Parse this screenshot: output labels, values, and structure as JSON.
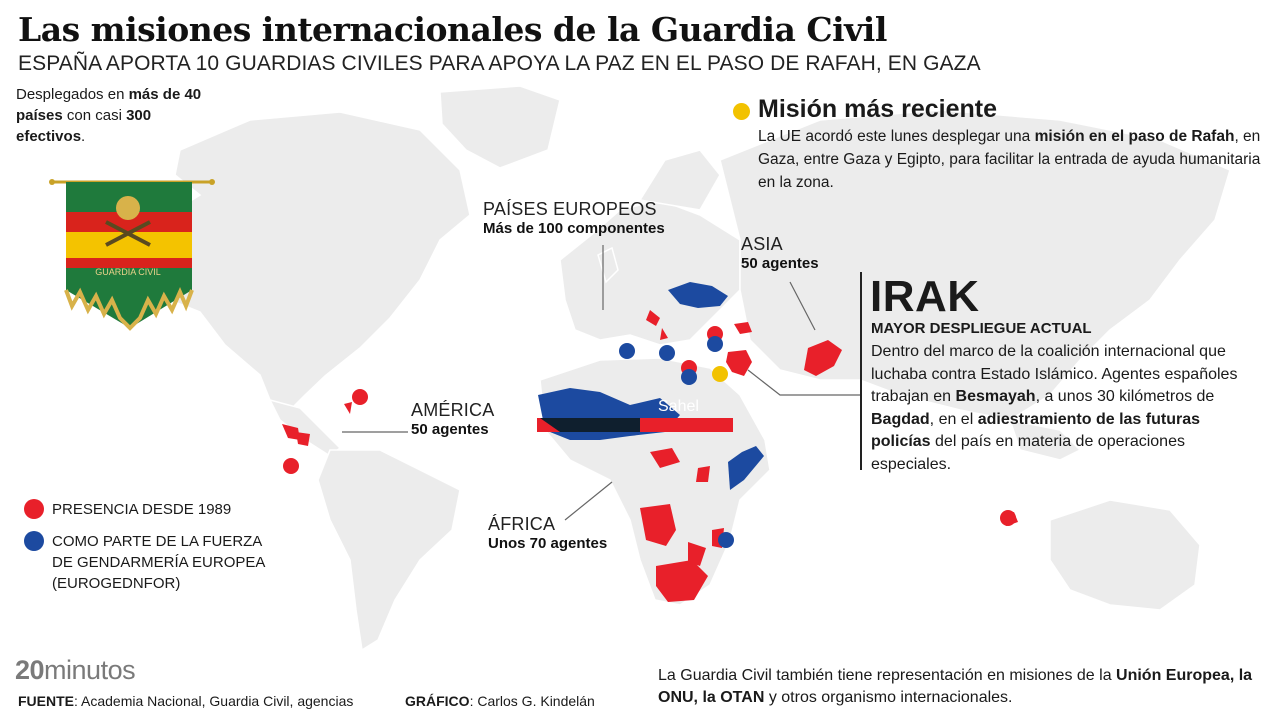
{
  "header": {
    "title": "Las misiones internacionales de la Guardia Civil",
    "subtitle": "ESPAÑA APORTA 10 GUARDIAS CIVILES PARA APOYA LA PAZ EN EL PASO DE RAFAH, EN GAZA"
  },
  "intro": {
    "t1": "Desplegados en ",
    "b1": "más de 40 países",
    "t2": " con casi ",
    "b2": "300 efectivos",
    "t3": "."
  },
  "flag": {
    "inscription": "GUARDIA CIVIL"
  },
  "recent": {
    "title": "Misión más reciente",
    "t1": "La UE acordó este lunes desplegar una ",
    "b1": "misión en el paso de Rafah",
    "t2": ", en Gaza, entre Gaza y Egipto, para facilitar la entrada de ayuda humanitaria en la zona."
  },
  "regions": {
    "europe": {
      "label": "PAÍSES EUROPEOS",
      "count": "Más de 100 componentes"
    },
    "asia": {
      "label": "ASIA",
      "count": "50 agentes"
    },
    "america": {
      "label": "AMÉRICA",
      "count": "50 agentes"
    },
    "africa": {
      "label": "ÁFRICA",
      "count": "Unos 70 agentes"
    },
    "sahel": {
      "label": "Sahel"
    }
  },
  "irak": {
    "title": "IRAK",
    "subtitle": "MAYOR DESPLIEGUE ACTUAL",
    "t1": "Dentro del marco de la coalición internacional que luchaba contra Estado Islámico. Agentes españoles trabajan en ",
    "b1": "Besmayah",
    "t2": ", a unos 30 kilómetros de ",
    "b2": "Bagdad",
    "t3": ", en el ",
    "b3": "adiestramiento de las futuras policías",
    "t4": " del país en materia de operaciones especiales."
  },
  "legend": {
    "red_label": "PRESENCIA DESDE 1989",
    "blue_label": "COMO PARTE DE LA FUERZA DE GENDARMERÍA EUROPEA (EUROGEDNFOR)"
  },
  "brand": {
    "part1": "20",
    "part2": "minutos"
  },
  "source": {
    "label": "FUENTE",
    "text": ": Academia Nacional, Guardia Civil, agencias"
  },
  "credit": {
    "label": "GRÁFICO",
    "text": ": Carlos G. Kindelán"
  },
  "footer": {
    "t1": "La Guardia Civil también tiene representación en misiones de la ",
    "b1": "Unión Europea, la ONU, la OTAN",
    "t2": " y otros organismo internacionales."
  },
  "colors": {
    "red": "#e8202a",
    "blue": "#1c4aa0",
    "yellow": "#f2c200",
    "land": "#ececec",
    "dark": "#0f1f2e"
  },
  "icons": [
    "guardia-civil-pennant-icon",
    "marker-dot-red",
    "marker-dot-blue",
    "marker-dot-yellow"
  ]
}
